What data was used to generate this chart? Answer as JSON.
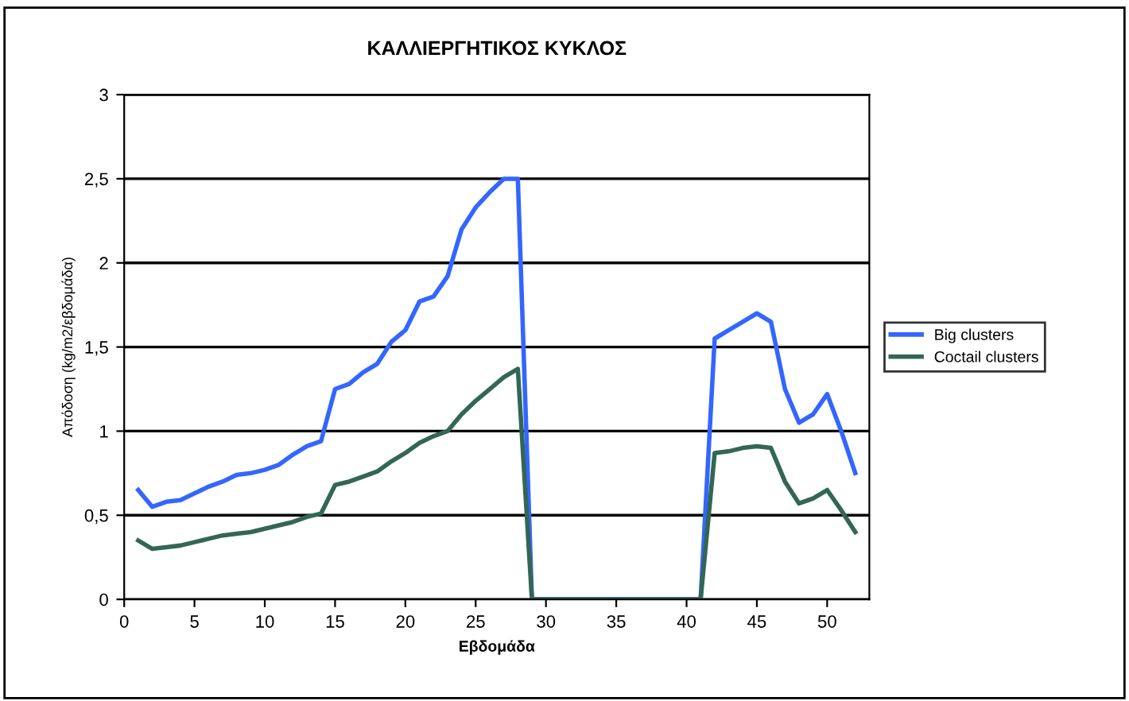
{
  "chart_data": {
    "type": "line",
    "title": "ΚΑΛΛΙΕΡΓΗΤΙΚΟΣ ΚΥΚΛΟΣ",
    "xlabel": "Εβδομάδα",
    "ylabel": "Απόδοση (kg/m2/εβδομάδα)",
    "x": [
      1,
      2,
      3,
      4,
      5,
      6,
      7,
      8,
      9,
      10,
      11,
      12,
      13,
      14,
      15,
      16,
      17,
      18,
      19,
      20,
      21,
      22,
      23,
      24,
      25,
      26,
      27,
      28,
      29,
      30,
      31,
      32,
      33,
      34,
      35,
      36,
      37,
      38,
      39,
      40,
      41,
      42,
      43,
      44,
      45,
      46,
      47,
      48,
      49,
      50,
      51,
      52
    ],
    "series": [
      {
        "name": "Big clusters",
        "color": "#3366ff",
        "values": [
          0.65,
          0.55,
          0.58,
          0.59,
          0.63,
          0.67,
          0.7,
          0.74,
          0.75,
          0.77,
          0.8,
          0.86,
          0.91,
          0.94,
          1.25,
          1.28,
          1.35,
          1.4,
          1.53,
          1.6,
          1.77,
          1.8,
          1.92,
          2.2,
          2.33,
          2.42,
          2.5,
          2.5,
          0,
          0,
          0,
          0,
          0,
          0,
          0,
          0,
          0,
          0,
          0,
          0,
          0,
          1.55,
          1.6,
          1.65,
          1.7,
          1.65,
          1.25,
          1.05,
          1.1,
          1.22,
          1.0,
          0.75
        ]
      },
      {
        "name": "Coctail clusters",
        "color": "#336655",
        "values": [
          0.35,
          0.3,
          0.31,
          0.32,
          0.34,
          0.36,
          0.38,
          0.39,
          0.4,
          0.42,
          0.44,
          0.46,
          0.49,
          0.51,
          0.68,
          0.7,
          0.73,
          0.76,
          0.82,
          0.87,
          0.93,
          0.97,
          1.0,
          1.1,
          1.18,
          1.25,
          1.32,
          1.37,
          0,
          0,
          0,
          0,
          0,
          0,
          0,
          0,
          0,
          0,
          0,
          0,
          0,
          0.87,
          0.88,
          0.9,
          0.91,
          0.9,
          0.7,
          0.57,
          0.6,
          0.65,
          0.53,
          0.4
        ]
      }
    ],
    "xlim": [
      0,
      53
    ],
    "xticks": [
      0,
      5,
      10,
      15,
      20,
      25,
      30,
      35,
      40,
      45,
      50
    ],
    "ylim": [
      0,
      3
    ],
    "yticks": [
      0,
      {
        "value": 0.5,
        "label": "0,5"
      },
      1,
      {
        "value": 1.5,
        "label": "1,5"
      },
      2,
      {
        "value": 2.5,
        "label": "2,5"
      },
      3
    ],
    "grid": "y",
    "legend": "right",
    "marker": "none",
    "line_style": "solid"
  }
}
